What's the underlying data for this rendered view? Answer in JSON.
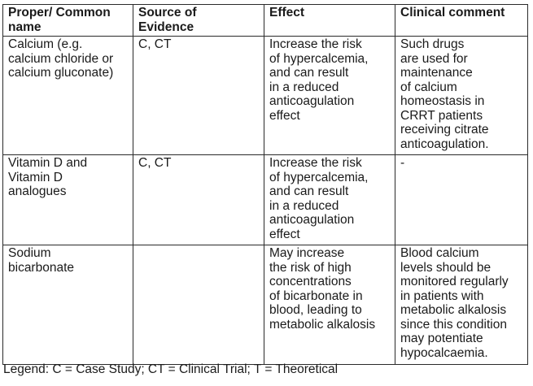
{
  "table": {
    "headers": [
      "Proper/ Common\nname",
      "Source of\nEvidence",
      "Effect",
      "Clinical comment"
    ],
    "rows": [
      {
        "name": "Calcium (e.g.\ncalcium chloride or\ncalcium gluconate)",
        "source": "C, CT",
        "effect": "Increase the risk\nof hypercalcemia,\nand can result\nin a reduced\nanticoagulation\neffect",
        "comment": "Such drugs\nare used for\nmaintenance\nof calcium\nhomeostasis in\nCRRT patients\nreceiving citrate\nanticoagulation."
      },
      {
        "name": "Vitamin D and\nVitamin D\nanalogues",
        "source": "C, CT",
        "effect": "Increase the risk\nof hypercalcemia,\nand can result\nin a reduced\nanticoagulation\neffect",
        "comment": "-"
      },
      {
        "name": "Sodium\nbicarbonate",
        "source": "",
        "effect": "May increase\nthe risk of high\nconcentrations\nof bicarbonate in\nblood, leading to\nmetabolic alkalosis",
        "comment": "Blood calcium\nlevels should be\nmonitored regularly\nin patients with\nmetabolic alkalosis\nsince this condition\nmay potentiate\nhypocalcaemia."
      }
    ]
  },
  "legend": "Legend: C = Case Study; CT = Clinical Trial; T = Theoretical"
}
